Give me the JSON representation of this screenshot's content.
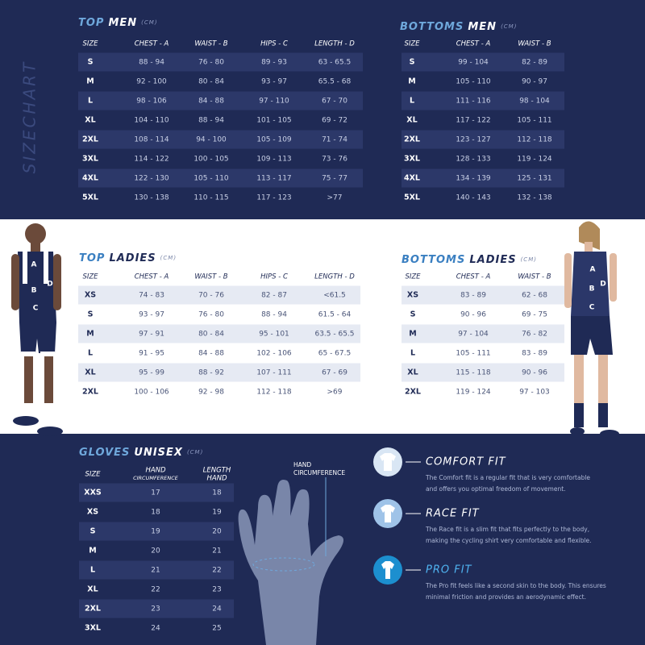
{
  "side_label": "SIZECHART",
  "top_men": {
    "title": "TOP",
    "subtitle": "MEN",
    "unit": "(CM)",
    "header": [
      "SIZE",
      "CHEST - A",
      "WAIST - B",
      "HIPS - C",
      "LENGTH - D"
    ],
    "rows": [
      [
        "S",
        "88 - 94",
        "76 - 80",
        "89 - 93",
        "63 - 65.5"
      ],
      [
        "M",
        "92 - 100",
        "80 - 84",
        "93 - 97",
        "65.5 - 68"
      ],
      [
        "L",
        "98 - 106",
        "84 - 88",
        "97 - 110",
        "67 - 70"
      ],
      [
        "XL",
        "104 - 110",
        "88 - 94",
        "101 - 105",
        "69 - 72"
      ],
      [
        "2XL",
        "108 - 114",
        "94 - 100",
        "105 - 109",
        "71 - 74"
      ],
      [
        "3XL",
        "114 - 122",
        "100 - 105",
        "109 - 113",
        "73 - 76"
      ],
      [
        "4XL",
        "122 - 130",
        "105 - 110",
        "113 - 117",
        "75 - 77"
      ],
      [
        "5XL",
        "130 - 138",
        "110 - 115",
        "117 - 123",
        ">77"
      ]
    ]
  },
  "bottoms_men": {
    "title": "BOTTOMS",
    "subtitle": "MEN",
    "unit": "(CM)",
    "header": [
      "SIZE",
      "CHEST - A",
      "WAIST - B"
    ],
    "rows": [
      [
        "S",
        "99 - 104",
        "82 - 89"
      ],
      [
        "M",
        "105 - 110",
        "90 - 97"
      ],
      [
        "L",
        "111 - 116",
        "98 - 104"
      ],
      [
        "XL",
        "117 - 122",
        "105 - 111"
      ],
      [
        "2XL",
        "123 - 127",
        "112 - 118"
      ],
      [
        "3XL",
        "128 - 133",
        "119 - 124"
      ],
      [
        "4XL",
        "134 - 139",
        "125 - 131"
      ],
      [
        "5XL",
        "140 - 143",
        "132 - 138"
      ]
    ]
  },
  "top_ladies": {
    "title": "TOP",
    "subtitle": "LADIES",
    "unit": "(CM)",
    "header": [
      "SIZE",
      "CHEST - A",
      "WAIST - B",
      "HIPS - C",
      "LENGTH - D"
    ],
    "rows": [
      [
        "XS",
        "74 - 83",
        "70 - 76",
        "82 - 87",
        "<61.5"
      ],
      [
        "S",
        "93 - 97",
        "76 - 80",
        "88 - 94",
        "61.5 - 64"
      ],
      [
        "M",
        "97 - 91",
        "80 - 84",
        "95 - 101",
        "63.5 - 65.5"
      ],
      [
        "L",
        "91 - 95",
        "84 - 88",
        "102 - 106",
        "65 - 67.5"
      ],
      [
        "XL",
        "95 - 99",
        "88 - 92",
        "107 - 111",
        "67 - 69"
      ],
      [
        "2XL",
        "100 - 106",
        "92 - 98",
        "112 - 118",
        ">69"
      ]
    ]
  },
  "bottoms_ladies": {
    "title": "BOTTOMS",
    "subtitle": "LADIES",
    "unit": "(CM)",
    "header": [
      "SIZE",
      "CHEST - A",
      "WAIST - B"
    ],
    "rows": [
      [
        "XS",
        "83 - 89",
        "62 - 68"
      ],
      [
        "S",
        "90 - 96",
        "69 - 75"
      ],
      [
        "M",
        "97 - 104",
        "76 - 82"
      ],
      [
        "L",
        "105 - 111",
        "83 - 89"
      ],
      [
        "XL",
        "115 - 118",
        "90 - 96"
      ],
      [
        "2XL",
        "119 - 124",
        "97 - 103"
      ]
    ]
  },
  "gloves": {
    "title": "GLOVES",
    "subtitle": "UNISEX",
    "unit": "(CM)",
    "header": [
      "SIZE",
      [
        "HAND",
        "CIRCUMFERENCE"
      ],
      [
        "LENGTH",
        "HAND"
      ]
    ],
    "rows": [
      [
        "XXS",
        "17",
        "18"
      ],
      [
        "XS",
        "18",
        "19"
      ],
      [
        "S",
        "19",
        "20"
      ],
      [
        "M",
        "20",
        "21"
      ],
      [
        "L",
        "21",
        "22"
      ],
      [
        "XL",
        "22",
        "23"
      ],
      [
        "2XL",
        "23",
        "24"
      ],
      [
        "3XL",
        "24",
        "25"
      ]
    ]
  },
  "hand_label": [
    "HAND",
    "CIRCUMFERENCE"
  ],
  "man_labels": [
    "A",
    "B",
    "D",
    "C"
  ],
  "woman_labels": [
    "A",
    "B",
    "D",
    "C"
  ],
  "fits": [
    {
      "title": "COMFORT FIT",
      "description": [
        "The Comfort fit is a regular fit that is very comfortable",
        "and offers you optimal freedom of movement."
      ]
    },
    {
      "title": "RACE FIT",
      "description": [
        "The Race fit is a slim fit that fits perfectly to the body,",
        "making the cycling shirt very comfortable and flexible."
      ]
    },
    {
      "title": "PRO FIT",
      "description": [
        "The Pro fit feels like a second skin to the body. This ensures",
        "minimal friction and provides an aerodynamic effect."
      ]
    }
  ]
}
